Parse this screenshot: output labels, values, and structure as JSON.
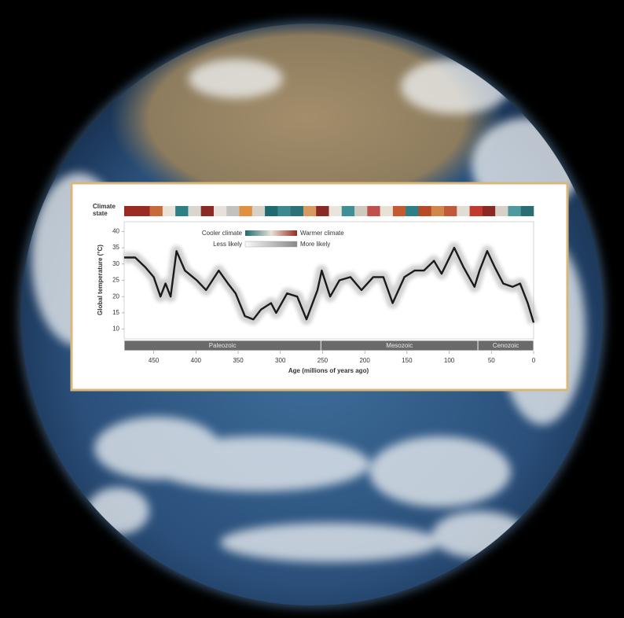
{
  "chart_data": {
    "type": "line",
    "climate_state": {
      "label": "Climate state",
      "colors": [
        "#9b2a22",
        "#9b2a22",
        "#c96a3a",
        "#e8e2d8",
        "#2f7f86",
        "#d9d6d0",
        "#8a2a24",
        "#e6e1da",
        "#c4c2be",
        "#e0903f",
        "#d7d2c8",
        "#1f6b70",
        "#3a8a90",
        "#2c7078",
        "#d99a60",
        "#8a2a24",
        "#e9e4dc",
        "#3f8f96",
        "#cfc9bf",
        "#c0504a",
        "#e8e2d6",
        "#c45a30",
        "#2f7f86",
        "#b84a28",
        "#d0884a",
        "#c05a38",
        "#e2ddd4",
        "#c13a2e",
        "#8a2a24",
        "#d8d2c6",
        "#4f9aa0",
        "#2a6e74"
      ]
    },
    "legend": {
      "cooler": "Cooler climate",
      "warmer": "Warmer climate",
      "less": "Less likely",
      "more": "More likely"
    },
    "ylabel": "Global temperature (°C)",
    "xlabel": "Age (millions of years ago)",
    "eras": [
      {
        "name": "Paleozoic",
        "start": 485,
        "end": 252
      },
      {
        "name": "Mesozoic",
        "start": 252,
        "end": 66
      },
      {
        "name": "Cenozoic",
        "start": 66,
        "end": 0
      }
    ],
    "x": [
      485,
      472,
      460,
      450,
      442,
      436,
      430,
      423,
      413,
      399,
      388,
      373,
      362,
      353,
      342,
      332,
      323,
      311,
      305,
      292,
      280,
      269,
      256,
      251,
      241,
      230,
      217,
      204,
      190,
      178,
      167,
      153,
      141,
      130,
      118,
      109,
      94,
      83,
      70,
      64,
      55,
      46,
      36,
      25,
      16,
      7,
      0
    ],
    "values": [
      32,
      32,
      29,
      26,
      20,
      24,
      20,
      34,
      28,
      25,
      22,
      28,
      24,
      21,
      14,
      13,
      16,
      18,
      15,
      21,
      20,
      13,
      22,
      28,
      20,
      25,
      26,
      22,
      26,
      26,
      18,
      26,
      28,
      28,
      31,
      27,
      35,
      29,
      23,
      28,
      34,
      29,
      24,
      23,
      24,
      18,
      12
    ],
    "color": "#1a1a1a",
    "xlim": [
      485,
      0
    ],
    "xticks": [
      450,
      400,
      350,
      300,
      250,
      200,
      150,
      100,
      50,
      0
    ],
    "ylim": [
      7,
      43
    ],
    "yticks": [
      40,
      35,
      30,
      25,
      20,
      15,
      10
    ]
  }
}
